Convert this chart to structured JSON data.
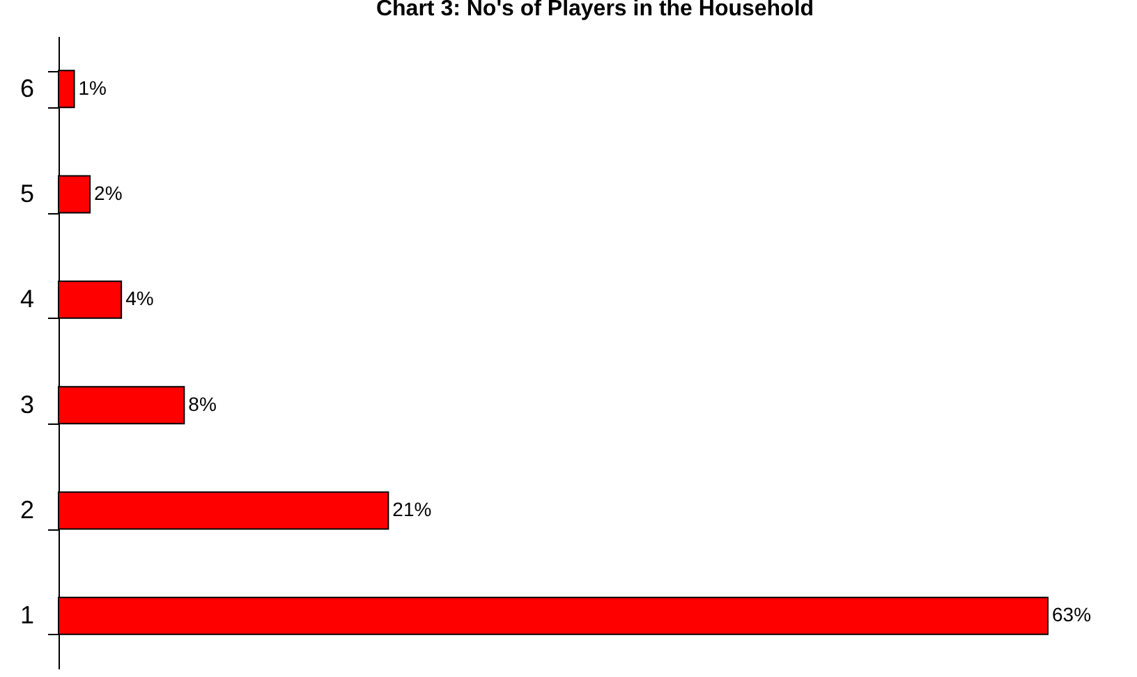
{
  "chart_data": {
    "type": "bar",
    "orientation": "horizontal",
    "title": "Chart 3:  No's of Players in the Household",
    "categories": [
      "6",
      "5",
      "4",
      "3",
      "2",
      "1"
    ],
    "values": [
      1,
      2,
      4,
      8,
      21,
      63
    ],
    "value_labels": [
      "1%",
      "2%",
      "4%",
      "8%",
      "21%",
      "63%"
    ],
    "color": "#ff0000"
  }
}
